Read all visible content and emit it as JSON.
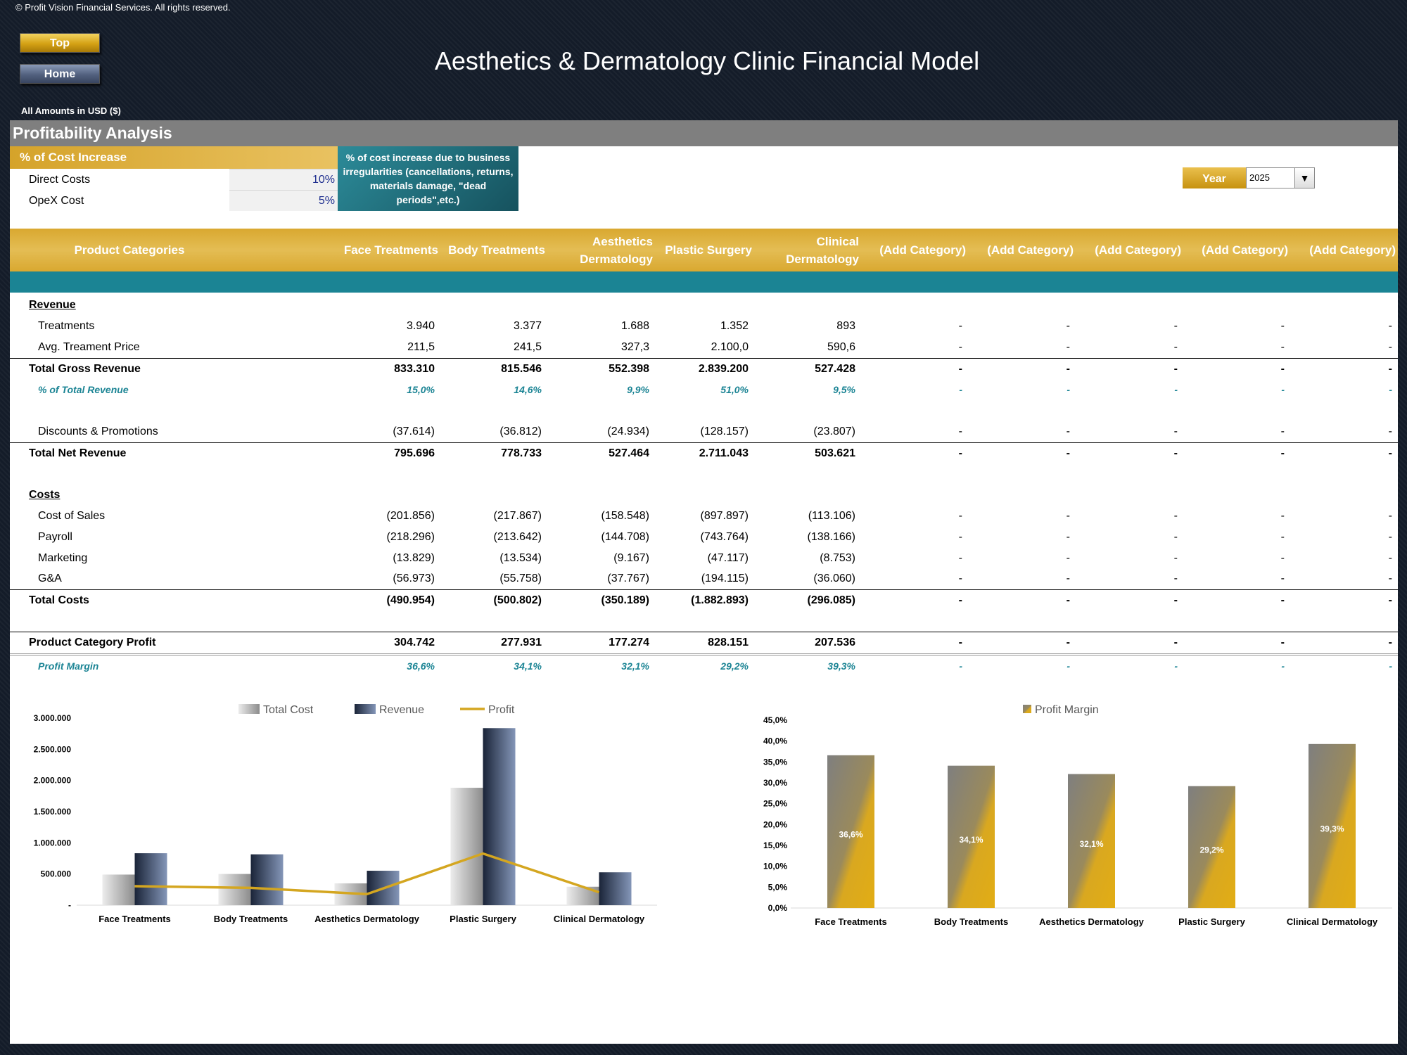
{
  "copyright": "© Profit Vision Financial Services. All rights reserved.",
  "nav": {
    "top_label": "Top",
    "home_label": "Home"
  },
  "title": "Aesthetics & Dermatology Clinic Financial Model",
  "amounts_note": "All Amounts in  USD ($)",
  "section_title": "Profitability Analysis",
  "cost_increase": {
    "header": "% of Cost Increase",
    "rows": [
      {
        "label": "Direct Costs",
        "value": "10%"
      },
      {
        "label": "OpeX Cost",
        "value": "5%"
      }
    ],
    "note": "% of cost increase due to business irregularities (cancellations, returns, materials damage, \"dead periods\",etc.)"
  },
  "year": {
    "label": "Year",
    "value": "2025"
  },
  "table": {
    "header_label": "Product Categories",
    "columns": [
      "Face Treatments",
      "Body Treatments",
      "Aesthetics Dermatology",
      "Plastic Surgery",
      "Clinical Dermatology",
      "(Add Category)",
      "(Add Category)",
      "(Add Category)",
      "(Add Category)",
      "(Add Category)"
    ],
    "rows": [
      {
        "label": "Revenue",
        "style": "section",
        "values": []
      },
      {
        "label": "Treatments",
        "style": "item",
        "values": [
          "3.940",
          "3.377",
          "1.688",
          "1.352",
          "893",
          "-",
          "-",
          "-",
          "-",
          "-"
        ]
      },
      {
        "label": "Avg. Treament Price",
        "style": "item",
        "values": [
          "211,5",
          "241,5",
          "327,3",
          "2.100,0",
          "590,6",
          "-",
          "-",
          "-",
          "-",
          "-"
        ]
      },
      {
        "label": "Total Gross Revenue",
        "style": "total",
        "values": [
          "833.310",
          "815.546",
          "552.398",
          "2.839.200",
          "527.428",
          "-",
          "-",
          "-",
          "-",
          "-"
        ]
      },
      {
        "label": "% of Total Revenue",
        "style": "pct",
        "values": [
          "15,0%",
          "14,6%",
          "9,9%",
          "51,0%",
          "9,5%",
          "-",
          "-",
          "-",
          "-",
          "-"
        ]
      },
      {
        "label": "Discounts & Promotions",
        "style": "item",
        "values": [
          "(37.614)",
          "(36.812)",
          "(24.934)",
          "(128.157)",
          "(23.807)",
          "-",
          "-",
          "-",
          "-",
          "-"
        ]
      },
      {
        "label": "Total Net Revenue",
        "style": "total",
        "values": [
          "795.696",
          "778.733",
          "527.464",
          "2.711.043",
          "503.621",
          "-",
          "-",
          "-",
          "-",
          "-"
        ]
      },
      {
        "label": "Costs",
        "style": "section",
        "values": []
      },
      {
        "label": "Cost of Sales",
        "style": "item",
        "values": [
          "(201.856)",
          "(217.867)",
          "(158.548)",
          "(897.897)",
          "(113.106)",
          "-",
          "-",
          "-",
          "-",
          "-"
        ]
      },
      {
        "label": "Payroll",
        "style": "item",
        "values": [
          "(218.296)",
          "(213.642)",
          "(144.708)",
          "(743.764)",
          "(138.166)",
          "-",
          "-",
          "-",
          "-",
          "-"
        ]
      },
      {
        "label": "Marketing",
        "style": "item",
        "values": [
          "(13.829)",
          "(13.534)",
          "(9.167)",
          "(47.117)",
          "(8.753)",
          "-",
          "-",
          "-",
          "-",
          "-"
        ]
      },
      {
        "label": "G&A",
        "style": "item",
        "values": [
          "(56.973)",
          "(55.758)",
          "(37.767)",
          "(194.115)",
          "(36.060)",
          "-",
          "-",
          "-",
          "-",
          "-"
        ]
      },
      {
        "label": "Total Costs",
        "style": "total",
        "values": [
          "(490.954)",
          "(500.802)",
          "(350.189)",
          "(1.882.893)",
          "(296.085)",
          "-",
          "-",
          "-",
          "-",
          "-"
        ]
      },
      {
        "label": "Product Category Profit",
        "style": "total",
        "values": [
          "304.742",
          "277.931",
          "177.274",
          "828.151",
          "207.536",
          "-",
          "-",
          "-",
          "-",
          "-"
        ]
      },
      {
        "label": "Profit Margin",
        "style": "pct",
        "values": [
          "36,6%",
          "34,1%",
          "32,1%",
          "29,2%",
          "39,3%",
          "-",
          "-",
          "-",
          "-",
          "-"
        ]
      }
    ]
  },
  "colors": {
    "gold": "#d9a830",
    "teal": "#1b8494",
    "grey": "#7f7f7f",
    "navy": "#1f2e4a"
  },
  "chart_data": [
    {
      "type": "bar",
      "categories": [
        "Face Treatments",
        "Body Treatments",
        "Aesthetics Dermatology",
        "Plastic Surgery",
        "Clinical Dermatology"
      ],
      "series": [
        {
          "name": "Total Cost",
          "kind": "bar",
          "values": [
            490954,
            500802,
            350189,
            1882893,
            296085
          ]
        },
        {
          "name": "Revenue",
          "kind": "bar",
          "values": [
            833310,
            815546,
            552398,
            2839200,
            527428
          ]
        },
        {
          "name": "Profit",
          "kind": "line",
          "values": [
            304742,
            277931,
            177274,
            828151,
            207536
          ]
        }
      ],
      "ylim": [
        0,
        3000000
      ],
      "yticks": [
        "-",
        "500.000",
        "1.000.000",
        "1.500.000",
        "2.000.000",
        "2.500.000",
        "3.000.000"
      ],
      "legend": "top"
    },
    {
      "type": "bar",
      "categories": [
        "Face Treatments",
        "Body Treatments",
        "Aesthetics Dermatology",
        "Plastic Surgery",
        "Clinical Dermatology"
      ],
      "series": [
        {
          "name": "Profit Margin",
          "values": [
            36.6,
            34.1,
            32.1,
            29.2,
            39.3
          ],
          "labels": [
            "36,6%",
            "34,1%",
            "32,1%",
            "29,2%",
            "39,3%"
          ]
        }
      ],
      "ylim": [
        0,
        45
      ],
      "yticks": [
        "0,0%",
        "5,0%",
        "10,0%",
        "15,0%",
        "20,0%",
        "25,0%",
        "30,0%",
        "35,0%",
        "40,0%",
        "45,0%"
      ],
      "legend": "top"
    }
  ]
}
